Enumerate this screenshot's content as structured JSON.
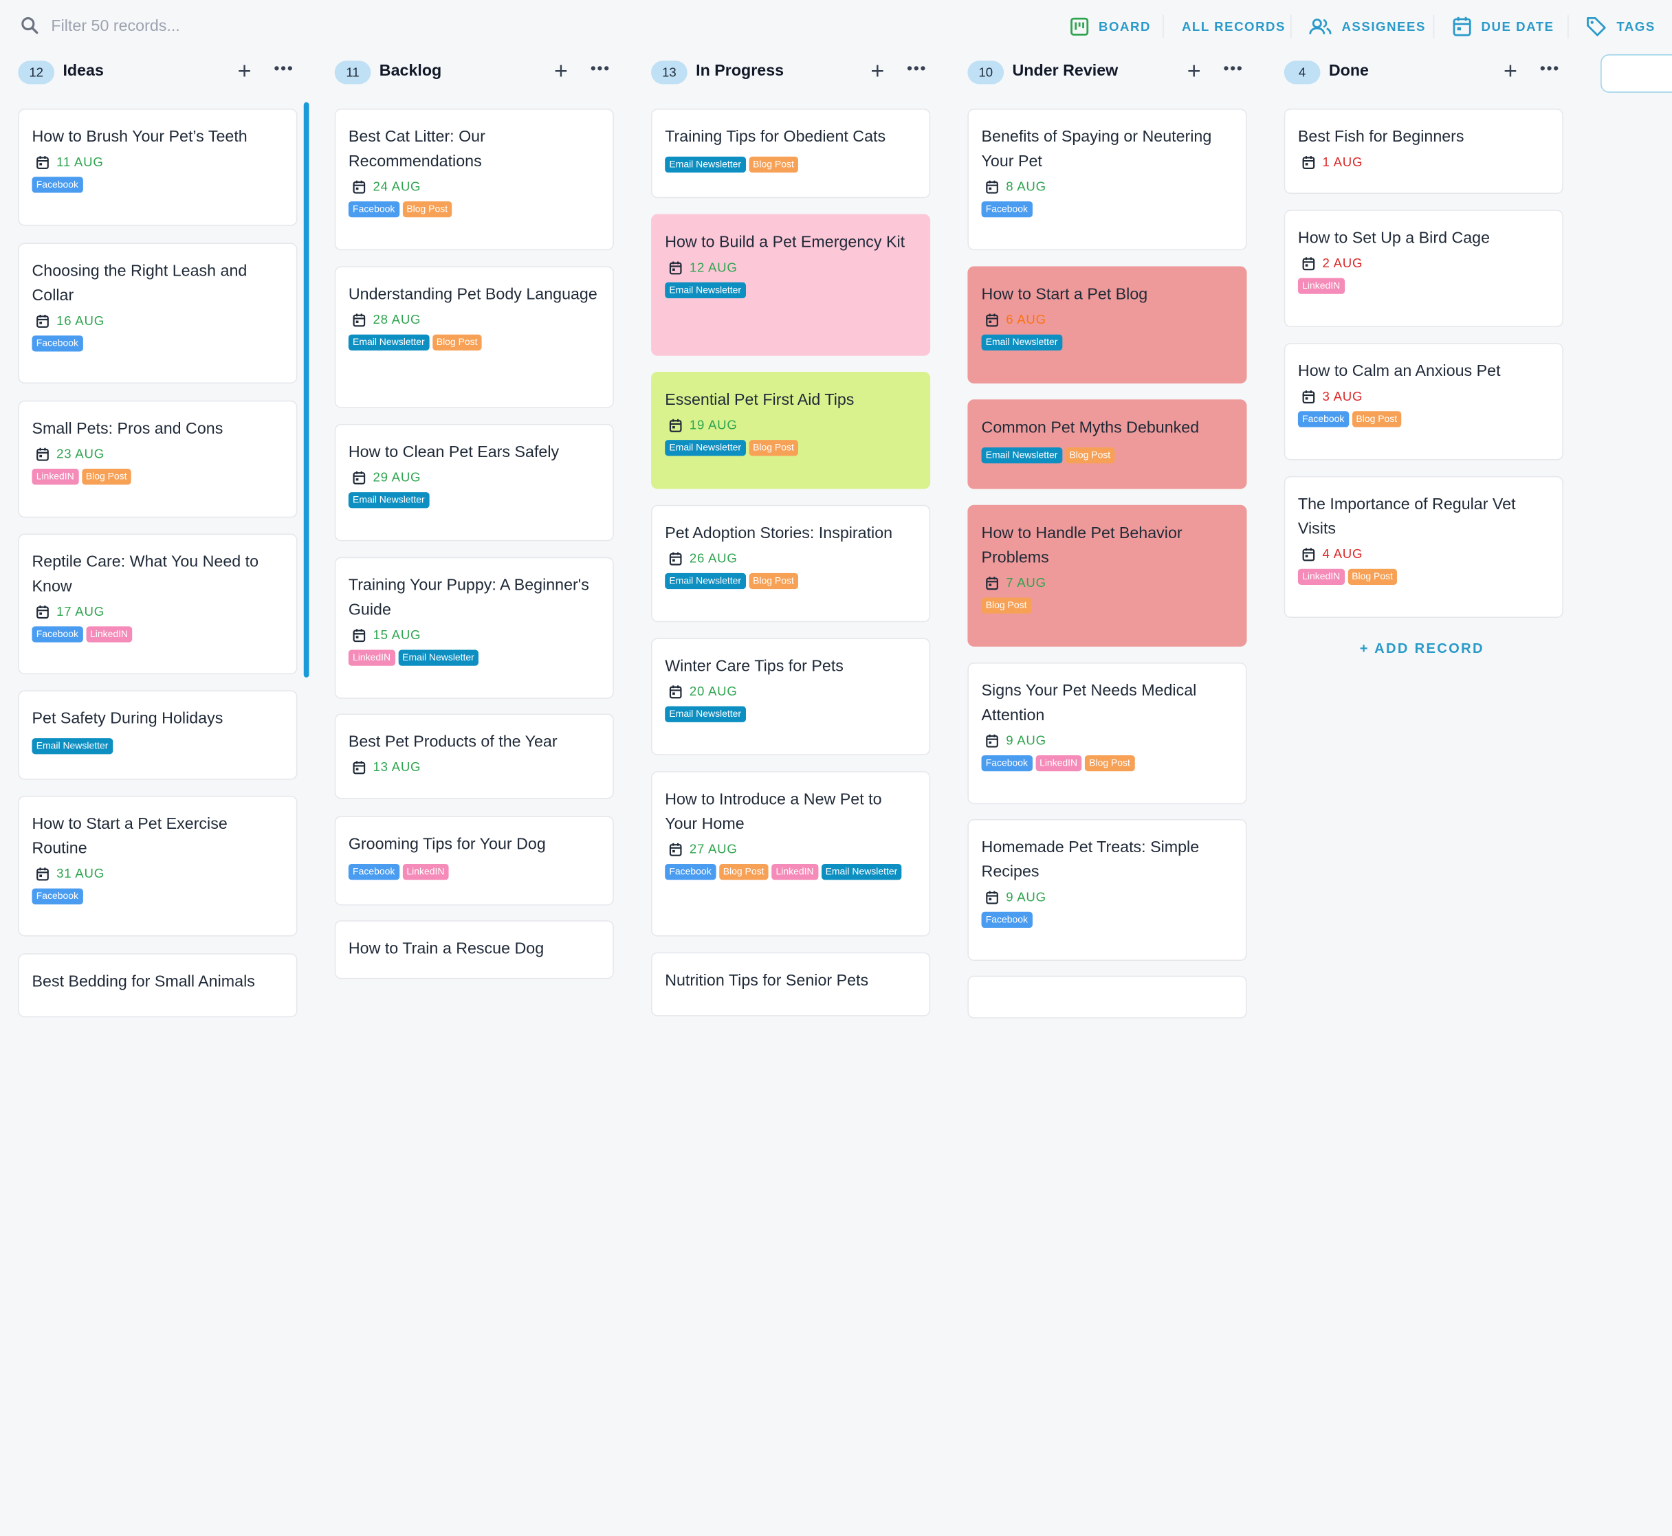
{
  "search": {
    "placeholder": "Filter 50 records..."
  },
  "toolbar": {
    "board": "BOARD",
    "all_records": "ALL RECORDS",
    "assignees": "ASSIGNEES",
    "due_date": "DUE DATE",
    "tags": "TAGS"
  },
  "colors": {
    "accent": "#2a9ac9",
    "date_green": "#2ea44f",
    "date_red": "#dc2626",
    "date_orange": "#f97316",
    "card_pink": "#fcc8d8",
    "card_green": "#d9f28e",
    "card_red": "#ef9a9a"
  },
  "columns": [
    {
      "count": "12",
      "name": "Ideas",
      "cards": [
        {
          "title": "How to Brush Your Pet’s Teeth",
          "date": "11 AUG",
          "tags": [
            "Facebook"
          ]
        },
        {
          "title": "Choosing the Right Leash and Collar",
          "date": "16 AUG",
          "tags": [
            "Facebook"
          ]
        },
        {
          "title": "Small Pets: Pros and Cons",
          "date": "23 AUG",
          "tags": [
            "LinkedIN",
            "Blog Post"
          ]
        },
        {
          "title": "Reptile Care: What You Need to Know",
          "date": "17 AUG",
          "tags": [
            "Facebook",
            "LinkedIN"
          ]
        },
        {
          "title": "Pet Safety During Holidays",
          "date": "",
          "tags": [
            "Email Newsletter"
          ]
        },
        {
          "title": "How to Start a Pet Exercise Routine",
          "date": "31 AUG",
          "tags": [
            "Facebook"
          ]
        },
        {
          "title": "Best Bedding for Small Animals",
          "date": "",
          "tags": []
        }
      ]
    },
    {
      "count": "11",
      "name": "Backlog",
      "cards": [
        {
          "title": "Best Cat Litter: Our Recommendations",
          "date": "24 AUG",
          "tags": [
            "Facebook",
            "Blog Post"
          ]
        },
        {
          "title": "Understanding Pet Body Language",
          "date": "28 AUG",
          "tags": [
            "Email Newsletter",
            "Blog Post"
          ]
        },
        {
          "title": "How to Clean Pet Ears Safely",
          "date": "29 AUG",
          "tags": [
            "Email Newsletter"
          ]
        },
        {
          "title": "Training Your Puppy: A Beginner's Guide",
          "date": "15 AUG",
          "tags": [
            "LinkedIN",
            "Email Newsletter"
          ]
        },
        {
          "title": "Best Pet Products of the Year",
          "date": "13 AUG",
          "tags": []
        },
        {
          "title": "Grooming Tips for Your Dog",
          "date": "",
          "tags": [
            "Facebook",
            "LinkedIN"
          ]
        },
        {
          "title": "How to Train a Rescue Dog",
          "date": "",
          "tags": []
        }
      ]
    },
    {
      "count": "13",
      "name": "In Progress",
      "cards": [
        {
          "title": "Training Tips for Obedient Cats",
          "date": "",
          "tags": [
            "Email Newsletter",
            "Blog Post"
          ]
        },
        {
          "title": "How to Build a Pet Emergency Kit",
          "date": "12 AUG",
          "tags": [
            "Email Newsletter"
          ]
        },
        {
          "title": "Essential Pet First Aid Tips",
          "date": "19 AUG",
          "tags": [
            "Email Newsletter",
            "Blog Post"
          ]
        },
        {
          "title": "Pet Adoption Stories: Inspiration",
          "date": "26 AUG",
          "tags": [
            "Email Newsletter",
            "Blog Post"
          ]
        },
        {
          "title": "Winter Care Tips for Pets",
          "date": "20 AUG",
          "tags": [
            "Email Newsletter"
          ]
        },
        {
          "title": "How to Introduce a New Pet to Your Home",
          "date": "27 AUG",
          "tags": [
            "Facebook",
            "Blog Post",
            "LinkedIN",
            "Email Newsletter"
          ]
        },
        {
          "title": "Nutrition Tips for Senior Pets",
          "date": "",
          "tags": []
        }
      ]
    },
    {
      "count": "10",
      "name": "Under Review",
      "cards": [
        {
          "title": "Benefits of Spaying or Neutering Your Pet",
          "date": "8 AUG",
          "tags": [
            "Facebook"
          ]
        },
        {
          "title": "How to Start a Pet Blog",
          "date": "6 AUG",
          "tags": [
            "Email Newsletter"
          ]
        },
        {
          "title": "Common Pet Myths Debunked",
          "date": "",
          "tags": [
            "Email Newsletter",
            "Blog Post"
          ]
        },
        {
          "title": "How to Handle Pet Behavior Problems",
          "date": "7 AUG",
          "tags": [
            "Blog Post"
          ]
        },
        {
          "title": "Signs Your Pet Needs Medical Attention",
          "date": "9 AUG",
          "tags": [
            "Facebook",
            "LinkedIN",
            "Blog Post"
          ]
        },
        {
          "title": "Homemade Pet Treats: Simple Recipes",
          "date": "9 AUG",
          "tags": [
            "Facebook"
          ]
        },
        {
          "title": "",
          "date": "",
          "tags": []
        }
      ]
    },
    {
      "count": "4",
      "name": "Done",
      "cards": [
        {
          "title": "Best Fish for Beginners",
          "date": "1 AUG",
          "tags": []
        },
        {
          "title": "How to Set Up a Bird Cage",
          "date": "2 AUG",
          "tags": [
            "LinkedIN"
          ]
        },
        {
          "title": "How to Calm an Anxious Pet",
          "date": "3 AUG",
          "tags": [
            "Facebook",
            "Blog Post"
          ]
        },
        {
          "title": "The Importance of Regular Vet Visits",
          "date": "4 AUG",
          "tags": [
            "LinkedIN",
            "Blog Post"
          ]
        }
      ]
    }
  ],
  "add_record": "+  ADD RECORD"
}
